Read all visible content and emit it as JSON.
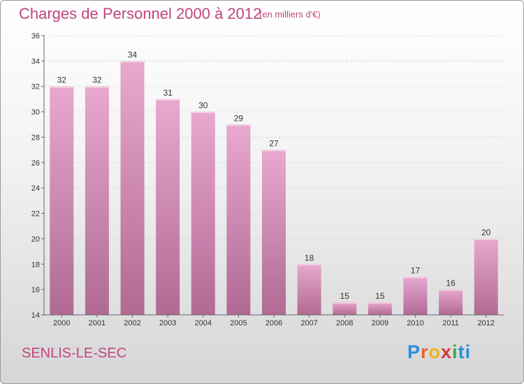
{
  "header": {
    "title": "Charges de Personnel 2000 à 2012",
    "subtitle": "(en milliers d'€)"
  },
  "footer": {
    "commune": "SENLIS-LE-SEC",
    "logo_text": "Proxiti"
  },
  "colors": {
    "bar_top": "#e8a8cf",
    "bar_bottom": "#b06a94",
    "title": "#c0457f"
  },
  "chart_data": {
    "type": "bar",
    "title": "Charges de Personnel 2000 à 2012",
    "subtitle": "(en milliers d'€)",
    "categories": [
      "2000",
      "2001",
      "2002",
      "2003",
      "2004",
      "2005",
      "2006",
      "2007",
      "2008",
      "2009",
      "2010",
      "2011",
      "2012"
    ],
    "values": [
      32,
      32,
      34,
      31,
      30,
      29,
      27,
      18,
      15,
      15,
      17,
      16,
      20
    ],
    "ylim": [
      14,
      36
    ],
    "yticks": [
      "14",
      "16",
      "18",
      "20",
      "22",
      "24",
      "26",
      "28",
      "30",
      "32",
      "34",
      "36"
    ],
    "grid": true,
    "legend": "none"
  }
}
